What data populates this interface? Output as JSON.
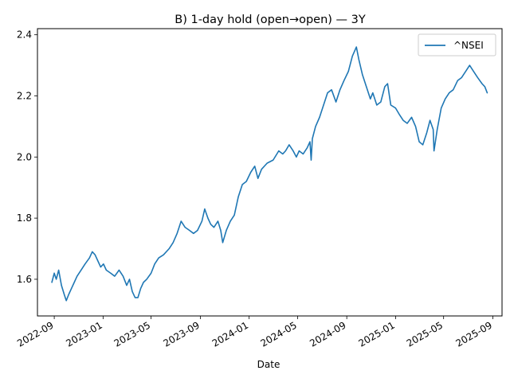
{
  "chart_data": {
    "type": "line",
    "title": "B) 1-day hold (open→open) — 3Y",
    "xlabel": "Date",
    "ylabel": "",
    "x_ticks": [
      "2022-09",
      "2023-01",
      "2023-05",
      "2023-09",
      "2024-01",
      "2024-05",
      "2024-09",
      "2025-01",
      "2025-05",
      "2025-09"
    ],
    "y_ticks": [
      "1.6",
      "1.8",
      "2.0",
      "2.2",
      "2.4"
    ],
    "xlim": [
      "2022-07-21",
      "2025-09-24"
    ],
    "ylim": [
      1.48,
      2.42
    ],
    "grid": false,
    "legend": "top-right",
    "colors": {
      "series": "#1f77b4"
    },
    "series": [
      {
        "name": "^NSEI",
        "points": [
          [
            "2022-08-26",
            1.59
          ],
          [
            "2022-09-01",
            1.62
          ],
          [
            "2022-09-06",
            1.6
          ],
          [
            "2022-09-12",
            1.63
          ],
          [
            "2022-09-19",
            1.58
          ],
          [
            "2022-09-26",
            1.55
          ],
          [
            "2022-10-01",
            1.53
          ],
          [
            "2022-10-07",
            1.55
          ],
          [
            "2022-10-14",
            1.57
          ],
          [
            "2022-10-21",
            1.59
          ],
          [
            "2022-10-28",
            1.61
          ],
          [
            "2022-11-07",
            1.63
          ],
          [
            "2022-11-17",
            1.65
          ],
          [
            "2022-11-28",
            1.67
          ],
          [
            "2022-12-05",
            1.69
          ],
          [
            "2022-12-12",
            1.68
          ],
          [
            "2022-12-19",
            1.66
          ],
          [
            "2022-12-26",
            1.64
          ],
          [
            "2023-01-02",
            1.65
          ],
          [
            "2023-01-09",
            1.63
          ],
          [
            "2023-01-20",
            1.62
          ],
          [
            "2023-01-30",
            1.61
          ],
          [
            "2023-02-10",
            1.63
          ],
          [
            "2023-02-20",
            1.61
          ],
          [
            "2023-03-01",
            1.58
          ],
          [
            "2023-03-08",
            1.6
          ],
          [
            "2023-03-15",
            1.56
          ],
          [
            "2023-03-22",
            1.54
          ],
          [
            "2023-03-29",
            1.54
          ],
          [
            "2023-04-05",
            1.57
          ],
          [
            "2023-04-12",
            1.59
          ],
          [
            "2023-04-20",
            1.6
          ],
          [
            "2023-05-01",
            1.62
          ],
          [
            "2023-05-10",
            1.65
          ],
          [
            "2023-05-20",
            1.67
          ],
          [
            "2023-06-01",
            1.68
          ],
          [
            "2023-06-15",
            1.7
          ],
          [
            "2023-06-25",
            1.72
          ],
          [
            "2023-07-05",
            1.75
          ],
          [
            "2023-07-15",
            1.79
          ],
          [
            "2023-07-25",
            1.77
          ],
          [
            "2023-08-05",
            1.76
          ],
          [
            "2023-08-15",
            1.75
          ],
          [
            "2023-08-25",
            1.76
          ],
          [
            "2023-09-05",
            1.79
          ],
          [
            "2023-09-12",
            1.83
          ],
          [
            "2023-09-20",
            1.8
          ],
          [
            "2023-09-27",
            1.78
          ],
          [
            "2023-10-05",
            1.77
          ],
          [
            "2023-10-15",
            1.79
          ],
          [
            "2023-10-22",
            1.76
          ],
          [
            "2023-10-27",
            1.72
          ],
          [
            "2023-11-05",
            1.76
          ],
          [
            "2023-11-15",
            1.79
          ],
          [
            "2023-11-25",
            1.81
          ],
          [
            "2023-12-05",
            1.87
          ],
          [
            "2023-12-15",
            1.91
          ],
          [
            "2023-12-25",
            1.92
          ],
          [
            "2024-01-05",
            1.95
          ],
          [
            "2024-01-15",
            1.97
          ],
          [
            "2024-01-23",
            1.93
          ],
          [
            "2024-02-01",
            1.96
          ],
          [
            "2024-02-15",
            1.98
          ],
          [
            "2024-03-01",
            1.99
          ],
          [
            "2024-03-15",
            2.02
          ],
          [
            "2024-03-25",
            2.01
          ],
          [
            "2024-04-01",
            2.02
          ],
          [
            "2024-04-10",
            2.04
          ],
          [
            "2024-04-20",
            2.02
          ],
          [
            "2024-04-28",
            2.0
          ],
          [
            "2024-05-05",
            2.02
          ],
          [
            "2024-05-15",
            2.01
          ],
          [
            "2024-05-25",
            2.03
          ],
          [
            "2024-06-01",
            2.05
          ],
          [
            "2024-06-04",
            1.99
          ],
          [
            "2024-06-07",
            2.06
          ],
          [
            "2024-06-15",
            2.1
          ],
          [
            "2024-06-25",
            2.13
          ],
          [
            "2024-07-05",
            2.17
          ],
          [
            "2024-07-15",
            2.21
          ],
          [
            "2024-07-25",
            2.22
          ],
          [
            "2024-08-05",
            2.18
          ],
          [
            "2024-08-15",
            2.22
          ],
          [
            "2024-08-25",
            2.25
          ],
          [
            "2024-09-05",
            2.28
          ],
          [
            "2024-09-15",
            2.33
          ],
          [
            "2024-09-25",
            2.36
          ],
          [
            "2024-10-01",
            2.32
          ],
          [
            "2024-10-10",
            2.27
          ],
          [
            "2024-10-20",
            2.23
          ],
          [
            "2024-10-30",
            2.19
          ],
          [
            "2024-11-05",
            2.21
          ],
          [
            "2024-11-15",
            2.17
          ],
          [
            "2024-11-25",
            2.18
          ],
          [
            "2024-12-05",
            2.23
          ],
          [
            "2024-12-12",
            2.24
          ],
          [
            "2024-12-20",
            2.17
          ],
          [
            "2025-01-01",
            2.16
          ],
          [
            "2025-01-10",
            2.14
          ],
          [
            "2025-01-20",
            2.12
          ],
          [
            "2025-01-30",
            2.11
          ],
          [
            "2025-02-10",
            2.13
          ],
          [
            "2025-02-20",
            2.1
          ],
          [
            "2025-03-01",
            2.05
          ],
          [
            "2025-03-10",
            2.04
          ],
          [
            "2025-03-20",
            2.08
          ],
          [
            "2025-03-28",
            2.12
          ],
          [
            "2025-04-05",
            2.09
          ],
          [
            "2025-04-07",
            2.02
          ],
          [
            "2025-04-15",
            2.09
          ],
          [
            "2025-04-25",
            2.16
          ],
          [
            "2025-05-05",
            2.19
          ],
          [
            "2025-05-15",
            2.21
          ],
          [
            "2025-05-25",
            2.22
          ],
          [
            "2025-06-05",
            2.25
          ],
          [
            "2025-06-15",
            2.26
          ],
          [
            "2025-06-25",
            2.28
          ],
          [
            "2025-07-05",
            2.3
          ],
          [
            "2025-07-15",
            2.28
          ],
          [
            "2025-07-25",
            2.26
          ],
          [
            "2025-08-05",
            2.24
          ],
          [
            "2025-08-12",
            2.23
          ],
          [
            "2025-08-18",
            2.21
          ]
        ]
      }
    ]
  }
}
